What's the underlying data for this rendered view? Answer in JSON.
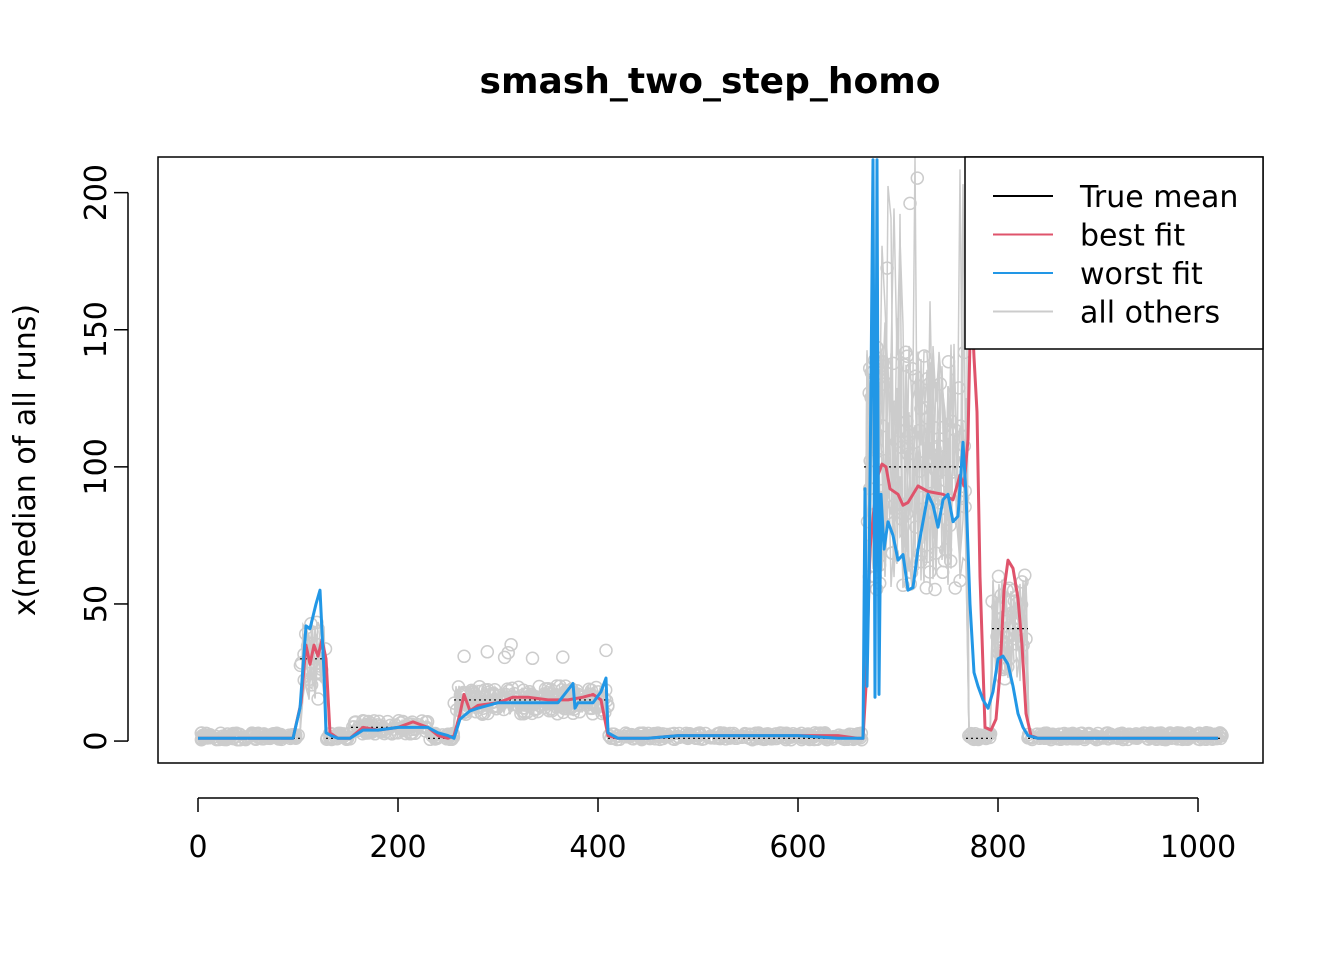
{
  "chart_data": {
    "type": "line",
    "title": "smash_two_step_homo",
    "xlabel": "",
    "ylabel": "x(median of all runs)",
    "xlim": [
      -40,
      1065
    ],
    "ylim": [
      -8,
      213
    ],
    "x_ticks": [
      0,
      200,
      400,
      600,
      800,
      1000
    ],
    "x_tick_labels": [
      "0",
      "200",
      "400",
      "600",
      "800",
      "1000"
    ],
    "y_ticks": [
      0,
      50,
      100,
      150,
      200
    ],
    "y_tick_labels": [
      "0",
      "50",
      "100",
      "150",
      "200"
    ],
    "grid": false,
    "legend_position": "top-right",
    "legend": [
      {
        "label": "True mean",
        "color": "#000000"
      },
      {
        "label": "best fit",
        "color": "#DF536B"
      },
      {
        "label": "worst fit",
        "color": "#2297E6"
      },
      {
        "label": "all others",
        "color": "#CCCCCC"
      }
    ],
    "true_mean": {
      "name": "True mean",
      "color": "#000000",
      "segments": [
        {
          "x": [
            0,
            102
          ],
          "y": 1
        },
        {
          "x": [
            102,
            128
          ],
          "y": 30
        },
        {
          "x": [
            128,
            153
          ],
          "y": 1
        },
        {
          "x": [
            153,
            230
          ],
          "y": 5
        },
        {
          "x": [
            230,
            256
          ],
          "y": 1
        },
        {
          "x": [
            256,
            410
          ],
          "y": 15
        },
        {
          "x": [
            410,
            666
          ],
          "y": 1
        },
        {
          "x": [
            666,
            768
          ],
          "y": 100
        },
        {
          "x": [
            768,
            794
          ],
          "y": 1
        },
        {
          "x": [
            794,
            830
          ],
          "y": 41
        },
        {
          "x": [
            830,
            1024
          ],
          "y": 1
        }
      ]
    },
    "best_fit": {
      "name": "best fit",
      "color": "#DF536B",
      "x": [
        0,
        60,
        95,
        103,
        108,
        112,
        116,
        120,
        124,
        128,
        132,
        140,
        152,
        165,
        180,
        200,
        215,
        230,
        240,
        250,
        256,
        262,
        266,
        272,
        280,
        300,
        315,
        330,
        350,
        370,
        385,
        395,
        403,
        410,
        420,
        450,
        480,
        520,
        560,
        600,
        640,
        660,
        665,
        668,
        672,
        676,
        680,
        684,
        688,
        692,
        700,
        705,
        710,
        720,
        730,
        745,
        755,
        762,
        766,
        770,
        773,
        776,
        779,
        782,
        787,
        793,
        798,
        802,
        806,
        810,
        815,
        820,
        824,
        828,
        833,
        840,
        900,
        1000,
        1020
      ],
      "y": [
        1,
        1,
        1,
        14,
        35,
        28,
        35,
        31,
        37,
        30,
        3,
        1,
        1,
        5,
        4,
        5,
        7,
        5,
        2,
        1,
        2,
        10,
        17,
        11,
        13,
        14,
        16,
        16,
        15,
        15,
        16,
        17,
        15,
        2,
        1,
        1,
        2,
        2,
        2,
        2,
        2,
        1,
        1,
        20,
        70,
        85,
        97,
        101,
        100,
        92,
        90,
        86,
        87,
        93,
        91,
        90,
        88,
        97,
        93,
        110,
        165,
        140,
        120,
        60,
        5,
        4,
        8,
        25,
        55,
        66,
        63,
        52,
        35,
        10,
        2,
        1,
        1,
        1,
        1
      ]
    },
    "worst_fit": {
      "name": "worst fit",
      "color": "#2297E6",
      "x": [
        0,
        60,
        95,
        102,
        108,
        112,
        118,
        122,
        126,
        128,
        133,
        140,
        152,
        165,
        180,
        200,
        215,
        230,
        240,
        250,
        256,
        262,
        272,
        280,
        300,
        330,
        360,
        375,
        377,
        380,
        395,
        403,
        408,
        410,
        420,
        450,
        480,
        520,
        560,
        600,
        640,
        660,
        665,
        667,
        669,
        671,
        673,
        675,
        677,
        679,
        681,
        683,
        686,
        690,
        695,
        700,
        705,
        710,
        715,
        720,
        725,
        730,
        735,
        740,
        745,
        750,
        755,
        760,
        765,
        768,
        772,
        776,
        780,
        785,
        790,
        795,
        800,
        805,
        810,
        815,
        820,
        825,
        830,
        840,
        900,
        1000,
        1020
      ],
      "y": [
        1,
        1,
        1,
        12,
        42,
        41,
        50,
        55,
        25,
        3,
        2,
        1,
        1,
        4,
        4,
        5,
        5,
        5,
        3,
        2,
        1,
        8,
        11,
        12,
        14,
        14,
        14,
        21,
        12,
        14,
        14,
        18,
        23,
        3,
        1,
        1,
        2,
        2,
        2,
        2,
        1,
        1,
        1,
        92,
        20,
        60,
        130,
        212,
        16,
        212,
        17,
        90,
        70,
        80,
        75,
        66,
        68,
        55,
        56,
        70,
        80,
        90,
        86,
        78,
        88,
        90,
        80,
        82,
        109,
        90,
        50,
        25,
        20,
        15,
        12,
        18,
        30,
        31,
        28,
        20,
        10,
        5,
        2,
        1,
        1,
        1,
        1
      ]
    }
  }
}
